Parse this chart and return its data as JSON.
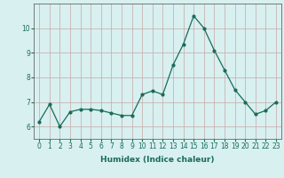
{
  "x": [
    0,
    1,
    2,
    3,
    4,
    5,
    6,
    7,
    8,
    9,
    10,
    11,
    12,
    13,
    14,
    15,
    16,
    17,
    18,
    19,
    20,
    21,
    22,
    23
  ],
  "y": [
    6.2,
    6.9,
    6.0,
    6.6,
    6.7,
    6.7,
    6.65,
    6.55,
    6.45,
    6.45,
    7.3,
    7.45,
    7.3,
    8.5,
    9.35,
    10.5,
    10.0,
    9.1,
    8.3,
    7.5,
    7.0,
    6.5,
    6.65,
    7.0
  ],
  "line_color": "#1a6b5a",
  "marker": "o",
  "marker_size": 2,
  "bg_color": "#d8f0f0",
  "grid_color": "#c8a8a8",
  "xlabel": "Humidex (Indice chaleur)",
  "ylim": [
    5.5,
    11.0
  ],
  "xlim": [
    -0.5,
    23.5
  ],
  "yticks": [
    6,
    7,
    8,
    9,
    10
  ],
  "xticks": [
    0,
    1,
    2,
    3,
    4,
    5,
    6,
    7,
    8,
    9,
    10,
    11,
    12,
    13,
    14,
    15,
    16,
    17,
    18,
    19,
    20,
    21,
    22,
    23
  ],
  "tick_fontsize": 5.5,
  "xlabel_fontsize": 6.5,
  "linewidth": 0.9
}
